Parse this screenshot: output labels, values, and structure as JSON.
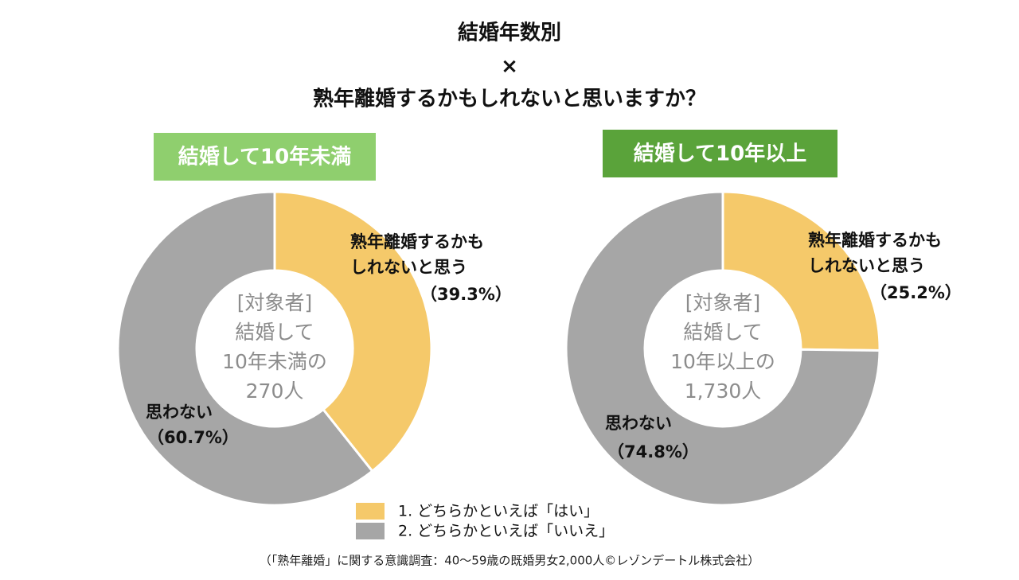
{
  "title": [
    "結婚年数別",
    "×",
    "熟年離婚するかもしれないと思いますか？"
  ],
  "legend": [
    {
      "label": "1. どちらかといえば「はい」",
      "color": "#f5c96a"
    },
    {
      "label": "2. どちらかといえば「いいえ」",
      "color": "#a6a6a6"
    }
  ],
  "source": "（「熟年離婚」に関する意識調査：40～59歳の既婚男女2,000人©レゾンデートル株式会社）",
  "chart_data": [
    {
      "type": "pie",
      "donut": true,
      "subtitle": "結婚して10年未満",
      "header_color": "#8fcf6e",
      "center_label": [
        "[対象者]",
        "結婚して",
        "10年未満の",
        "270人"
      ],
      "categories": [
        "熟年離婚するかもしれないと思う",
        "思わない"
      ],
      "values": [
        39.3,
        60.7
      ],
      "value_labels": [
        "（39.3%）",
        "（60.7%）"
      ],
      "colors": [
        "#f5c96a",
        "#a6a6a6"
      ]
    },
    {
      "type": "pie",
      "donut": true,
      "subtitle": "結婚して10年以上",
      "header_color": "#5aa33a",
      "center_label": [
        "[対象者]",
        "結婚して",
        "10年以上の",
        "1,730人"
      ],
      "categories": [
        "熟年離婚するかもしれないと思う",
        "思わない"
      ],
      "values": [
        25.2,
        74.8
      ],
      "value_labels": [
        "（25.2%）",
        "（74.8%）"
      ],
      "colors": [
        "#f5c96a",
        "#a6a6a6"
      ]
    }
  ]
}
